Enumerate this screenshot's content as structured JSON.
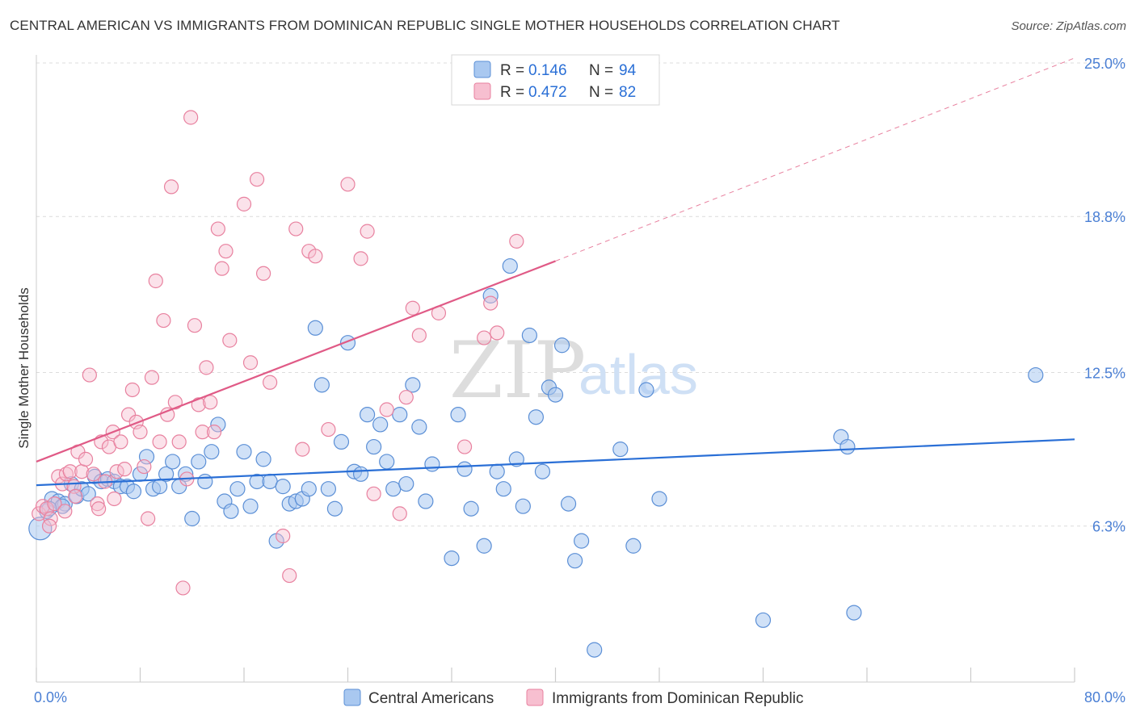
{
  "title": "CENTRAL AMERICAN VS IMMIGRANTS FROM DOMINICAN REPUBLIC SINGLE MOTHER HOUSEHOLDS CORRELATION CHART",
  "source": "Source: ZipAtlas.com",
  "watermark": {
    "zip": "ZIP",
    "atlas": "atlas"
  },
  "legend": {
    "rows": [
      {
        "r_label": "R =",
        "r_value": "0.146",
        "n_label": "N =",
        "n_value": "94"
      },
      {
        "r_label": "R =",
        "r_value": "0.472",
        "n_label": "N =",
        "n_value": "82"
      }
    ]
  },
  "bottom_legend": [
    "Central Americans",
    "Immigrants from Dominican Republic"
  ],
  "colors": {
    "blue_fill": "#a9c8f0",
    "blue_stroke": "#5b8fd6",
    "blue_line": "#2a6fd6",
    "pink_fill": "#f7bfd0",
    "pink_stroke": "#e8819f",
    "pink_line": "#e05a86",
    "grid": "#dcdcdc",
    "tick_text": "#4a7fd4"
  },
  "chart_data": {
    "type": "scatter",
    "title": "CENTRAL AMERICAN VS IMMIGRANTS FROM DOMINICAN REPUBLIC SINGLE MOTHER HOUSEHOLDS CORRELATION CHART",
    "xlabel": "",
    "ylabel": "Single Mother Households",
    "xlim": [
      0,
      80
    ],
    "ylim": [
      0,
      25.0
    ],
    "x_tick_labels": [
      "0.0%",
      "80.0%"
    ],
    "y_tick_values": [
      6.3,
      12.5,
      18.8,
      25.0
    ],
    "y_tick_labels": [
      "6.3%",
      "12.5%",
      "18.8%",
      "25.0%"
    ],
    "grid": true,
    "series": [
      {
        "name": "Central Americans",
        "color": "#5b8fd6",
        "trend": {
          "x": [
            0,
            80
          ],
          "y": [
            7.95,
            9.8
          ],
          "dashed_extension": false
        },
        "points": [
          [
            0.3,
            6.2
          ],
          [
            0.8,
            6.9
          ],
          [
            1.2,
            7.4
          ],
          [
            1.7,
            7.3
          ],
          [
            2.2,
            7.2
          ],
          [
            2.7,
            8.0
          ],
          [
            3.1,
            7.5
          ],
          [
            3.5,
            7.8
          ],
          [
            4.0,
            7.6
          ],
          [
            4.5,
            8.3
          ],
          [
            5.0,
            8.1
          ],
          [
            5.5,
            8.2
          ],
          [
            6.0,
            8.1
          ],
          [
            6.5,
            7.9
          ],
          [
            7.0,
            7.9
          ],
          [
            7.5,
            7.7
          ],
          [
            8.0,
            8.4
          ],
          [
            8.5,
            9.1
          ],
          [
            9.0,
            7.8
          ],
          [
            9.5,
            7.9
          ],
          [
            10.0,
            8.4
          ],
          [
            10.5,
            8.9
          ],
          [
            11.0,
            7.9
          ],
          [
            11.5,
            8.4
          ],
          [
            12.0,
            6.6
          ],
          [
            12.5,
            8.9
          ],
          [
            13.0,
            8.1
          ],
          [
            13.5,
            9.3
          ],
          [
            14.0,
            10.4
          ],
          [
            14.5,
            7.3
          ],
          [
            15.0,
            6.9
          ],
          [
            15.5,
            7.8
          ],
          [
            16.0,
            9.3
          ],
          [
            16.5,
            7.1
          ],
          [
            17.0,
            8.1
          ],
          [
            17.5,
            9.0
          ],
          [
            18.0,
            8.1
          ],
          [
            18.5,
            5.7
          ],
          [
            19.0,
            7.9
          ],
          [
            19.5,
            7.2
          ],
          [
            20.0,
            7.3
          ],
          [
            20.5,
            7.4
          ],
          [
            21.0,
            7.8
          ],
          [
            21.5,
            14.3
          ],
          [
            22.0,
            12.0
          ],
          [
            22.5,
            7.8
          ],
          [
            23.0,
            7.0
          ],
          [
            23.5,
            9.7
          ],
          [
            24.0,
            13.7
          ],
          [
            24.5,
            8.5
          ],
          [
            25.0,
            8.4
          ],
          [
            25.5,
            10.8
          ],
          [
            26.0,
            9.5
          ],
          [
            26.5,
            10.4
          ],
          [
            27.0,
            8.9
          ],
          [
            27.5,
            7.8
          ],
          [
            28.0,
            10.8
          ],
          [
            28.5,
            8.0
          ],
          [
            29.0,
            12.0
          ],
          [
            29.5,
            10.3
          ],
          [
            30.0,
            7.3
          ],
          [
            30.5,
            8.8
          ],
          [
            32.0,
            5.0
          ],
          [
            32.5,
            10.8
          ],
          [
            33.0,
            8.6
          ],
          [
            33.5,
            7.0
          ],
          [
            34.5,
            5.5
          ],
          [
            35.0,
            15.6
          ],
          [
            35.5,
            8.5
          ],
          [
            36.0,
            7.8
          ],
          [
            36.5,
            16.8
          ],
          [
            37.0,
            9.0
          ],
          [
            37.5,
            7.1
          ],
          [
            38.0,
            14.0
          ],
          [
            38.5,
            10.7
          ],
          [
            39.0,
            8.5
          ],
          [
            39.5,
            11.9
          ],
          [
            40.0,
            11.6
          ],
          [
            40.5,
            13.6
          ],
          [
            41.0,
            7.2
          ],
          [
            41.5,
            4.9
          ],
          [
            42.0,
            5.7
          ],
          [
            43.0,
            1.3
          ],
          [
            45.0,
            9.4
          ],
          [
            46.0,
            5.5
          ],
          [
            47.0,
            11.8
          ],
          [
            48.0,
            7.4
          ],
          [
            56.0,
            2.5
          ],
          [
            62.0,
            9.9
          ],
          [
            62.5,
            9.5
          ],
          [
            63.0,
            2.8
          ],
          [
            77.0,
            12.4
          ],
          [
            2.0,
            7.1
          ],
          [
            1.0,
            7.0
          ]
        ],
        "radius_large": [
          [
            0.3,
            6.2,
            14
          ]
        ]
      },
      {
        "name": "Immigrants from Dominican Republic",
        "color": "#e8819f",
        "trend": {
          "x": [
            0,
            40
          ],
          "y": [
            8.9,
            17.0
          ],
          "dashed_extension": {
            "x": [
              40,
              80
            ],
            "y": [
              17.0,
              25.2
            ]
          }
        },
        "points": [
          [
            0.2,
            6.8
          ],
          [
            0.5,
            7.1
          ],
          [
            0.8,
            7.0
          ],
          [
            1.1,
            6.6
          ],
          [
            1.4,
            7.2
          ],
          [
            1.7,
            8.3
          ],
          [
            2.0,
            8.0
          ],
          [
            2.3,
            8.4
          ],
          [
            2.6,
            8.5
          ],
          [
            2.9,
            7.9
          ],
          [
            3.2,
            9.3
          ],
          [
            3.5,
            8.5
          ],
          [
            3.8,
            9.0
          ],
          [
            4.1,
            12.4
          ],
          [
            4.4,
            8.4
          ],
          [
            4.7,
            7.2
          ],
          [
            5.0,
            9.7
          ],
          [
            5.3,
            8.1
          ],
          [
            5.6,
            9.5
          ],
          [
            5.9,
            10.1
          ],
          [
            6.2,
            8.5
          ],
          [
            6.5,
            9.7
          ],
          [
            6.8,
            8.6
          ],
          [
            7.1,
            10.8
          ],
          [
            7.4,
            11.8
          ],
          [
            7.7,
            10.5
          ],
          [
            8.0,
            10.1
          ],
          [
            8.3,
            8.7
          ],
          [
            8.6,
            6.6
          ],
          [
            8.9,
            12.3
          ],
          [
            9.2,
            16.2
          ],
          [
            9.5,
            9.7
          ],
          [
            9.8,
            14.6
          ],
          [
            10.1,
            10.8
          ],
          [
            10.4,
            20.0
          ],
          [
            10.7,
            11.3
          ],
          [
            11.0,
            9.7
          ],
          [
            11.3,
            3.8
          ],
          [
            11.6,
            8.2
          ],
          [
            11.9,
            22.8
          ],
          [
            12.2,
            14.4
          ],
          [
            12.5,
            11.2
          ],
          [
            12.8,
            10.1
          ],
          [
            13.1,
            12.7
          ],
          [
            13.4,
            11.3
          ],
          [
            13.7,
            10.1
          ],
          [
            14.0,
            18.3
          ],
          [
            14.3,
            16.7
          ],
          [
            14.6,
            17.4
          ],
          [
            14.9,
            13.8
          ],
          [
            16.0,
            19.3
          ],
          [
            16.5,
            12.9
          ],
          [
            17.0,
            20.3
          ],
          [
            17.5,
            16.5
          ],
          [
            18.0,
            12.1
          ],
          [
            19.0,
            5.9
          ],
          [
            19.5,
            4.3
          ],
          [
            20.0,
            18.3
          ],
          [
            20.5,
            9.4
          ],
          [
            21.0,
            17.4
          ],
          [
            21.5,
            17.2
          ],
          [
            22.5,
            10.2
          ],
          [
            24.0,
            20.1
          ],
          [
            25.0,
            17.1
          ],
          [
            25.5,
            18.2
          ],
          [
            26.0,
            7.6
          ],
          [
            27.0,
            11.0
          ],
          [
            28.0,
            6.8
          ],
          [
            28.5,
            11.5
          ],
          [
            29.0,
            15.1
          ],
          [
            29.5,
            14.0
          ],
          [
            31.0,
            14.9
          ],
          [
            33.0,
            9.5
          ],
          [
            34.5,
            13.9
          ],
          [
            35.0,
            15.3
          ],
          [
            35.5,
            14.1
          ],
          [
            37.0,
            17.8
          ],
          [
            1.0,
            6.3
          ],
          [
            3.0,
            7.5
          ],
          [
            4.8,
            7.0
          ],
          [
            6.0,
            7.4
          ],
          [
            2.2,
            6.9
          ]
        ]
      }
    ]
  }
}
